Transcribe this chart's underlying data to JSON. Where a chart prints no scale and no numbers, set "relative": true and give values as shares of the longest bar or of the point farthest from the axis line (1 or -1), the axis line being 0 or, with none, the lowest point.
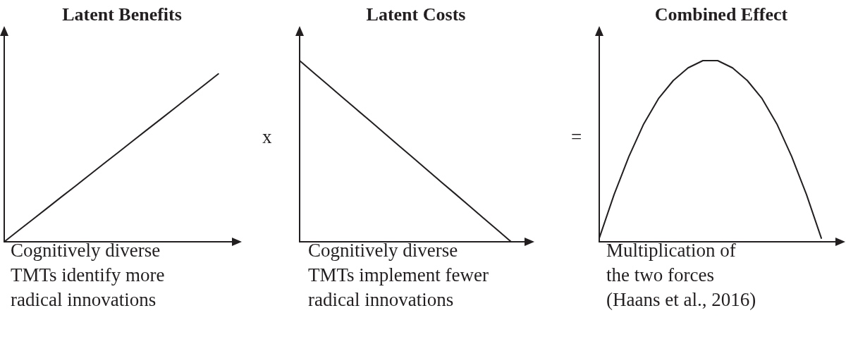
{
  "chart_data": [
    {
      "type": "line",
      "title": "Latent Benefits",
      "xlabel": "Cognitively diverse\nTMTs identify more\nradical innovations",
      "relative": true,
      "marker": "none",
      "color": "#231f20",
      "annotations": [
        "x"
      ],
      "categories": [
        null,
        null,
        null,
        null,
        null,
        null,
        null,
        null,
        null,
        null,
        null,
        null,
        null,
        null,
        null,
        null,
        null
      ],
      "values": [
        0,
        0.067,
        0.133,
        0.2,
        0.267,
        0.333,
        0.4,
        0.467,
        0.533,
        0.6,
        0.667,
        0.733,
        0.8,
        0.867,
        0.933,
        1,
        null
      ]
    },
    {
      "type": "line",
      "title": "Latent Costs",
      "xlabel": "Cognitively diverse\nTMTs implement fewer\nradical innovations",
      "relative": true,
      "marker": "none",
      "color": "#231f20",
      "annotations": [
        "="
      ],
      "categories": [
        null,
        null,
        null,
        null,
        null,
        null,
        null,
        null,
        null,
        null,
        null,
        null,
        null,
        null,
        null,
        null,
        null
      ],
      "values": [
        1,
        0.933,
        0.867,
        0.8,
        0.733,
        0.667,
        0.6,
        0.533,
        0.467,
        0.4,
        0.333,
        0.267,
        0.2,
        0.133,
        0.067,
        0,
        null
      ]
    },
    {
      "type": "line",
      "title": "Combined Effect",
      "xlabel": "Multiplication of\nthe two forces\n(Haans et al., 2016)",
      "relative": true,
      "marker": "none",
      "color": "#231f20",
      "categories": [
        null,
        null,
        null,
        null,
        null,
        null,
        null,
        null,
        null,
        null,
        null,
        null,
        null,
        null,
        null,
        null,
        null
      ],
      "values": [
        0.02,
        0.26,
        0.47,
        0.65,
        0.79,
        0.89,
        0.96,
        1,
        1,
        0.96,
        0.89,
        0.79,
        0.65,
        0.47,
        0.26,
        0.02,
        null
      ]
    }
  ]
}
